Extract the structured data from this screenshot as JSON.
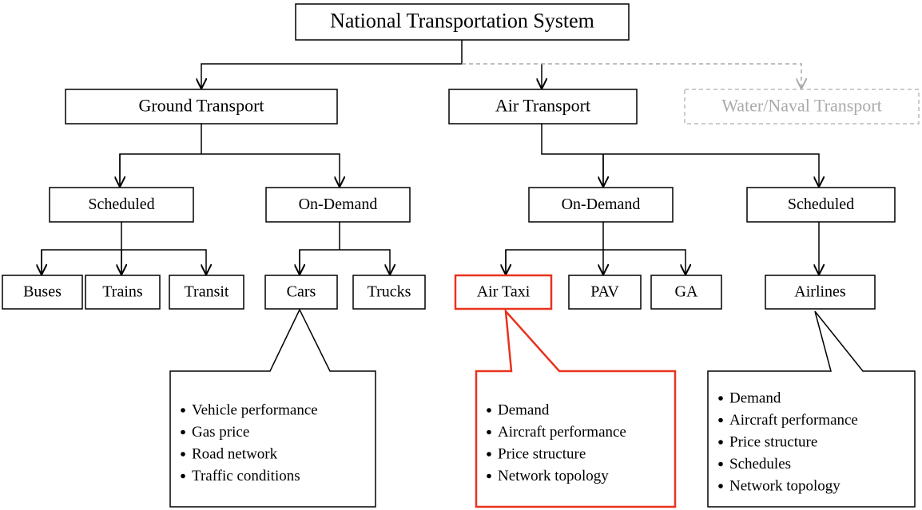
{
  "nodes": [
    {
      "label": "National Transportation System"
    },
    {
      "label": "Ground Transport"
    },
    {
      "label": "Air Transport"
    },
    {
      "label": "Water/Naval Transport"
    },
    {
      "label": "Scheduled"
    },
    {
      "label": "On-Demand"
    },
    {
      "label": "On-Demand"
    },
    {
      "label": "Scheduled"
    },
    {
      "label": "Buses"
    },
    {
      "label": "Trains"
    },
    {
      "label": "Transit"
    },
    {
      "label": "Cars"
    },
    {
      "label": "Trucks"
    },
    {
      "label": "Air Taxi"
    },
    {
      "label": "PAV"
    },
    {
      "label": "GA"
    },
    {
      "label": "Airlines"
    }
  ],
  "callouts": [
    {
      "items": [
        "Vehicle performance",
        "Gas price",
        "Road network",
        "Traffic conditions"
      ]
    },
    {
      "items": [
        "Demand",
        "Aircraft performance",
        "Price structure",
        "Network topology"
      ]
    },
    {
      "items": [
        "Demand",
        "Aircraft performance",
        "Price structure",
        "Schedules",
        "Network topology"
      ]
    }
  ]
}
